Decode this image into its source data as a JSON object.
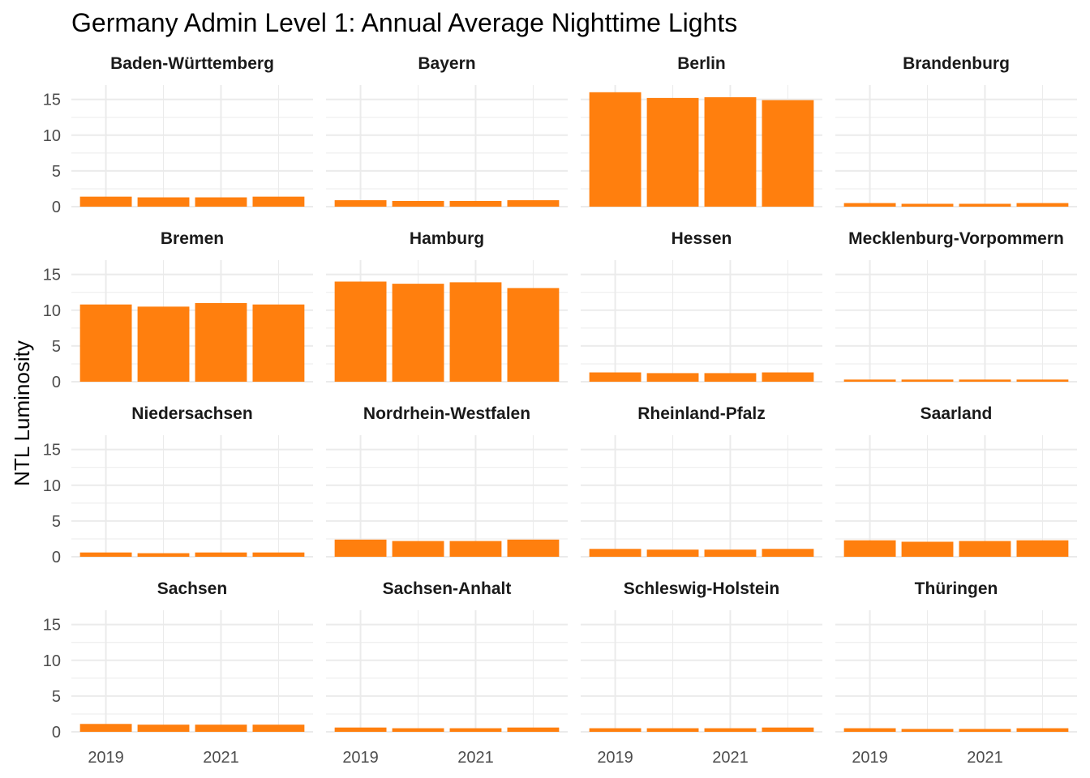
{
  "chart_data": {
    "type": "bar",
    "title": "Germany Admin Level 1: Annual Average Nighttime Lights",
    "xlabel": "",
    "ylabel": "NTL Luminosity",
    "x": [
      2019,
      2020,
      2021,
      2022
    ],
    "x_tick_labels": [
      "2019",
      "2021"
    ],
    "y_ticks": [
      "0",
      "5",
      "10",
      "15"
    ],
    "ylim": [
      0,
      17
    ],
    "grid": true,
    "facet_layout": "4x4",
    "bar_color": "#FF7F0E",
    "grid_color": "#EBEBEB",
    "panels": [
      {
        "name": "Baden-Württemberg",
        "values": [
          1.4,
          1.3,
          1.3,
          1.4
        ]
      },
      {
        "name": "Bayern",
        "values": [
          0.9,
          0.8,
          0.8,
          0.9
        ]
      },
      {
        "name": "Berlin",
        "values": [
          16.0,
          15.2,
          15.3,
          14.9
        ]
      },
      {
        "name": "Brandenburg",
        "values": [
          0.5,
          0.4,
          0.4,
          0.5
        ]
      },
      {
        "name": "Bremen",
        "values": [
          10.8,
          10.5,
          11.0,
          10.8
        ]
      },
      {
        "name": "Hamburg",
        "values": [
          14.0,
          13.7,
          13.9,
          13.1
        ]
      },
      {
        "name": "Hessen",
        "values": [
          1.3,
          1.2,
          1.2,
          1.3
        ]
      },
      {
        "name": "Mecklenburg-Vorpommern",
        "values": [
          0.3,
          0.3,
          0.3,
          0.3
        ]
      },
      {
        "name": "Niedersachsen",
        "values": [
          0.6,
          0.5,
          0.6,
          0.6
        ]
      },
      {
        "name": "Nordrhein-Westfalen",
        "values": [
          2.4,
          2.2,
          2.2,
          2.4
        ]
      },
      {
        "name": "Rheinland-Pfalz",
        "values": [
          1.1,
          1.0,
          1.0,
          1.1
        ]
      },
      {
        "name": "Saarland",
        "values": [
          2.3,
          2.1,
          2.2,
          2.3
        ]
      },
      {
        "name": "Sachsen",
        "values": [
          1.1,
          1.0,
          1.0,
          1.0
        ]
      },
      {
        "name": "Sachsen-Anhalt",
        "values": [
          0.6,
          0.5,
          0.5,
          0.6
        ]
      },
      {
        "name": "Schleswig-Holstein",
        "values": [
          0.5,
          0.5,
          0.5,
          0.6
        ]
      },
      {
        "name": "Thüringen",
        "values": [
          0.5,
          0.4,
          0.4,
          0.5
        ]
      }
    ]
  }
}
